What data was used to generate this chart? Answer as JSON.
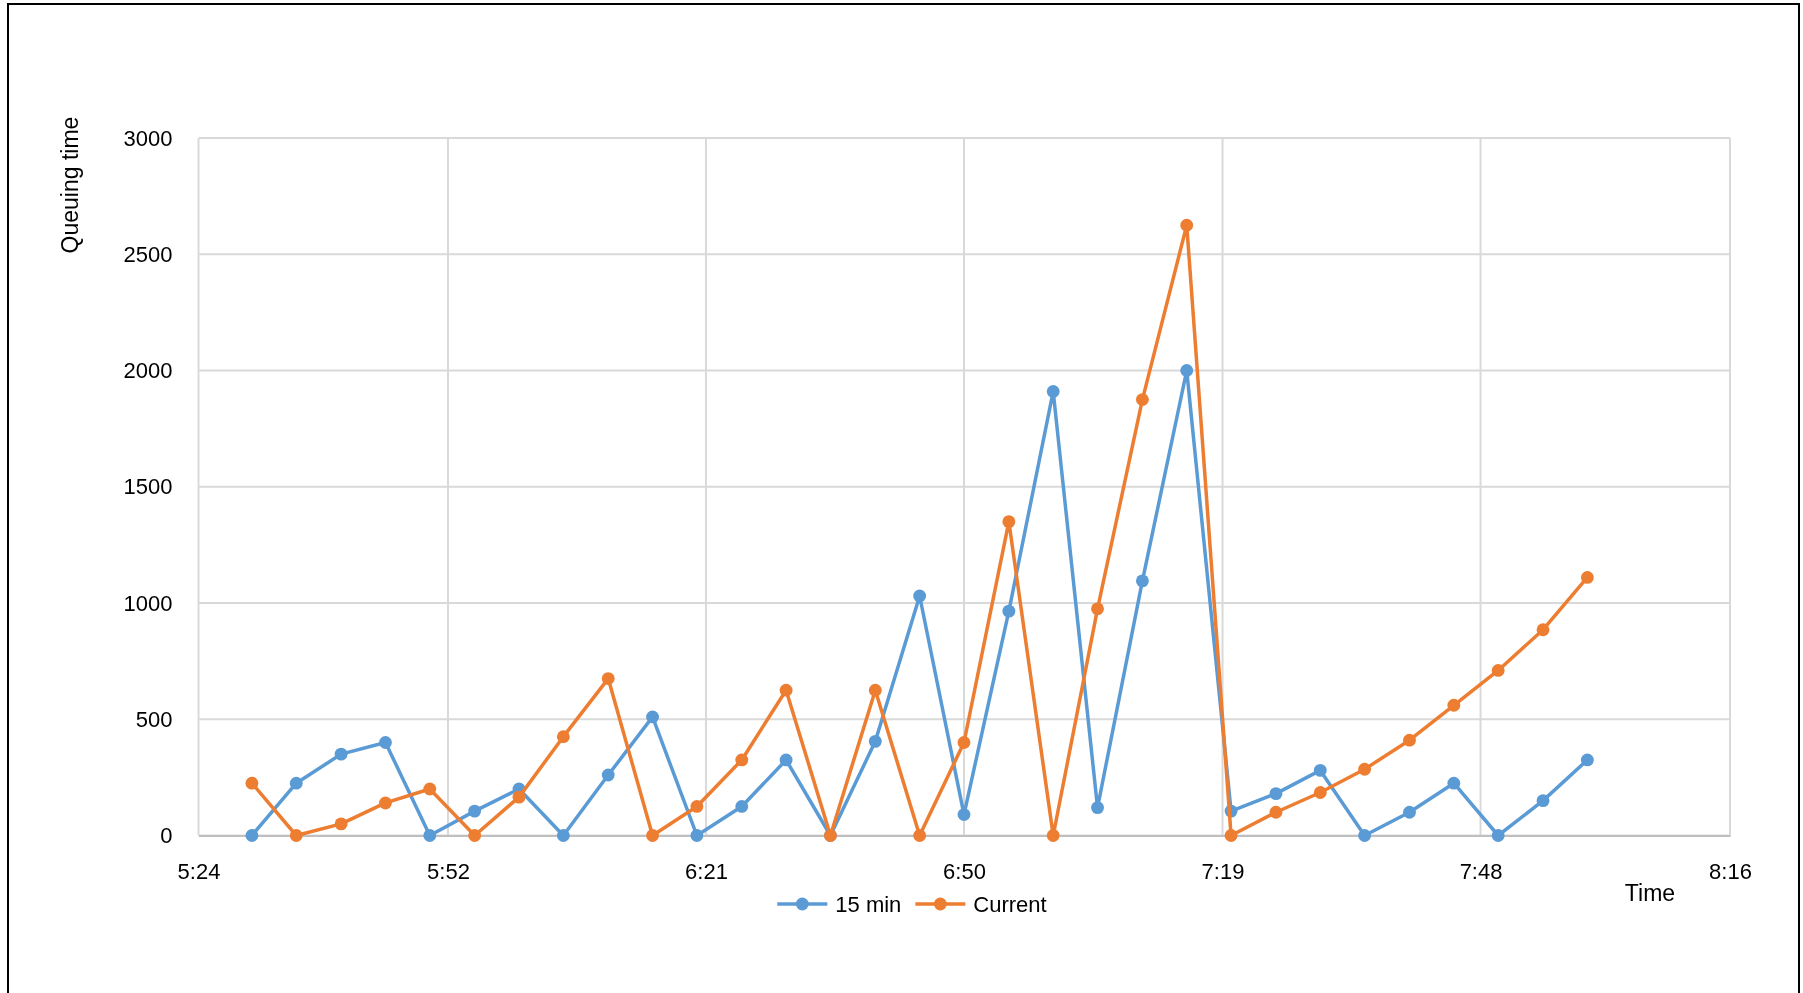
{
  "chart_data": {
    "type": "line",
    "xlabel": "Time",
    "ylabel": "Queuing time",
    "x": [
      5.5,
      5.583,
      5.667,
      5.75,
      5.833,
      5.917,
      6,
      6.083,
      6.167,
      6.25,
      6.333,
      6.417,
      6.5,
      6.583,
      6.667,
      6.75,
      6.833,
      6.917,
      7,
      7.083,
      7.167,
      7.25,
      7.333,
      7.417,
      7.5,
      7.583,
      7.667,
      7.75,
      7.833,
      7.917,
      8
    ],
    "xlim": [
      5.4,
      8.267
    ],
    "xticks": [
      {
        "value": 5.4,
        "label": "5:24"
      },
      {
        "value": 5.867,
        "label": "5:52"
      },
      {
        "value": 6.35,
        "label": "6:21"
      },
      {
        "value": 6.833,
        "label": "6:50"
      },
      {
        "value": 7.317,
        "label": "7:19"
      },
      {
        "value": 7.8,
        "label": "7:48"
      },
      {
        "value": 8.267,
        "label": "8:16"
      }
    ],
    "ylim": [
      0,
      3000
    ],
    "yticks": [
      0,
      500,
      1000,
      1500,
      2000,
      2500,
      3000
    ],
    "series": [
      {
        "name": "15 min",
        "color": "#5b9bd5",
        "values": [
          0,
          225,
          350,
          400,
          0,
          105,
          200,
          0,
          260,
          510,
          0,
          125,
          325,
          0,
          405,
          1030,
          90,
          965,
          1910,
          120,
          1095,
          2000,
          105,
          180,
          280,
          0,
          100,
          225,
          0,
          150,
          325
        ]
      },
      {
        "name": "Current",
        "color": "#ed7d31",
        "values": [
          225,
          0,
          50,
          140,
          200,
          0,
          165,
          425,
          675,
          0,
          125,
          325,
          625,
          0,
          625,
          0,
          400,
          1350,
          0,
          975,
          1875,
          2625,
          0,
          100,
          185,
          285,
          410,
          560,
          710,
          885,
          1110
        ]
      }
    ],
    "grid": true,
    "legend": "bottom",
    "marker": "circle",
    "line_style": "solid"
  }
}
